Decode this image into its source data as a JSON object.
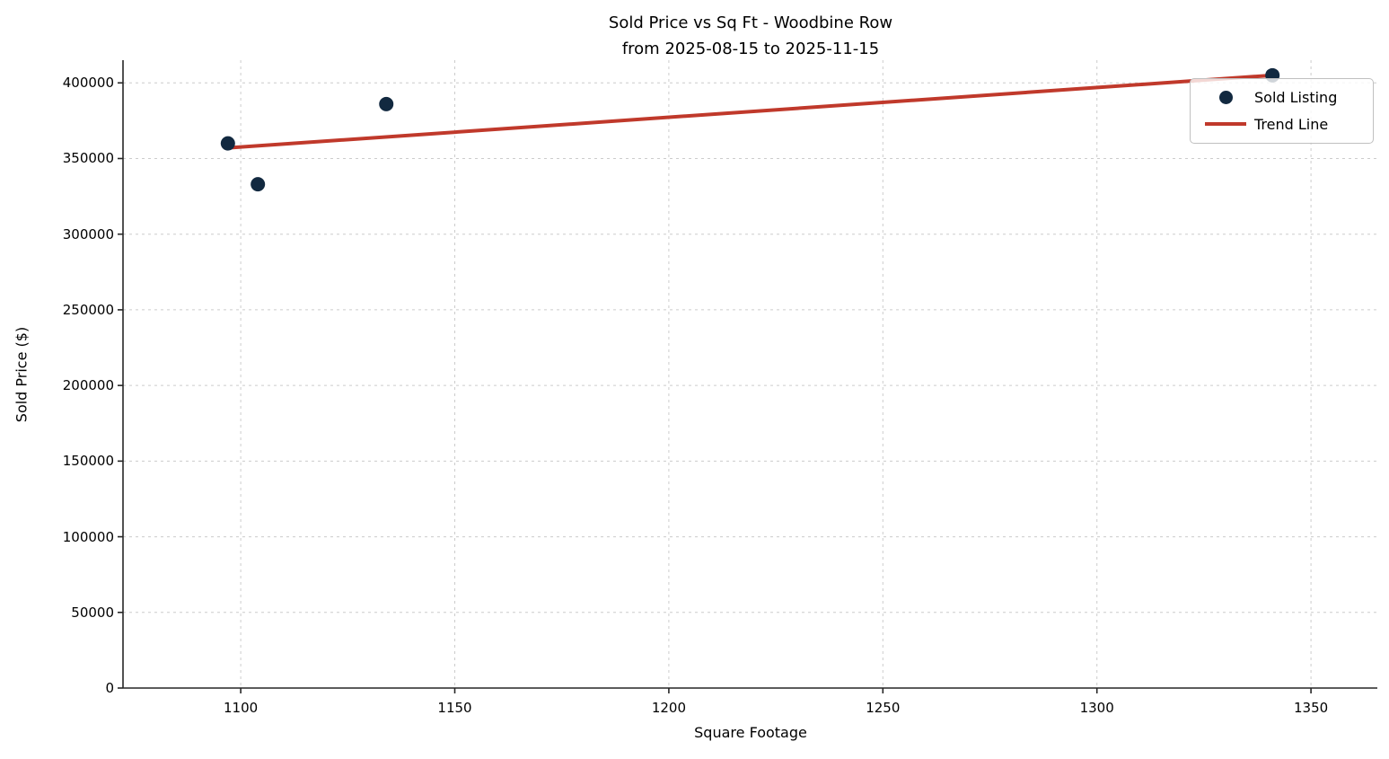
{
  "figure": {
    "title_line1": "Sold Price vs Sq Ft - Woodbine Row",
    "title_line2": "from 2025-08-15 to 2025-11-15",
    "xlabel": "Square Footage",
    "ylabel": "Sold Price ($)"
  },
  "legend": {
    "position": "upper-right",
    "items": [
      {
        "label": "Sold Listing",
        "marker": "dot",
        "color": "#122940"
      },
      {
        "label": "Trend Line",
        "marker": "line",
        "color": "#C0392B"
      }
    ]
  },
  "chart_data": {
    "type": "scatter",
    "title": "Sold Price vs Sq Ft - Woodbine Row\nfrom 2025-08-15 to 2025-11-15",
    "xlabel": "Square Footage",
    "ylabel": "Sold Price ($)",
    "xlim": [
      1072.5,
      1365.5
    ],
    "ylim": [
      0,
      415000
    ],
    "x_ticks": [
      1100,
      1150,
      1200,
      1250,
      1300,
      1350
    ],
    "y_ticks": [
      0,
      50000,
      100000,
      150000,
      200000,
      250000,
      300000,
      350000,
      400000
    ],
    "grid": true,
    "legend_position": "upper right",
    "series": [
      {
        "name": "Sold Listing",
        "type": "scatter",
        "color": "#122940",
        "points": [
          {
            "x": 1097,
            "y": 360000
          },
          {
            "x": 1104,
            "y": 333000
          },
          {
            "x": 1134,
            "y": 386000
          },
          {
            "x": 1341,
            "y": 405000
          }
        ]
      },
      {
        "name": "Trend Line",
        "type": "line",
        "color": "#C0392B",
        "points": [
          {
            "x": 1097,
            "y": 357000
          },
          {
            "x": 1341,
            "y": 405000
          }
        ]
      }
    ],
    "colors": {
      "grid": "#cccccc",
      "axis": "#262626",
      "text": "#000000"
    }
  }
}
